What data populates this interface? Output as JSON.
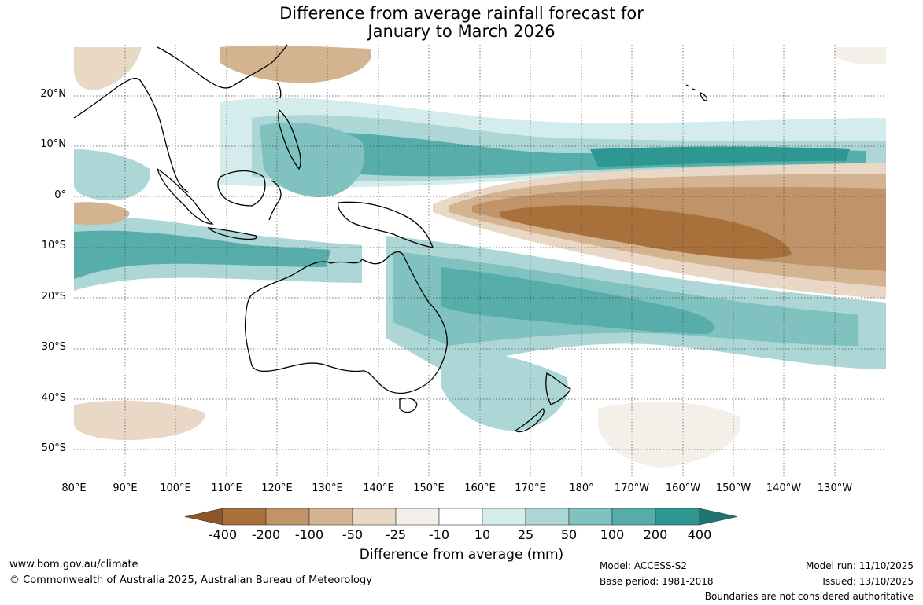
{
  "title_line1": "Difference from average rainfall forecast for",
  "title_line2": "January to March 2026",
  "legend": {
    "labels": [
      "-400",
      "-200",
      "-100",
      "-50",
      "-25",
      "-10",
      "10",
      "25",
      "50",
      "100",
      "200",
      "400"
    ],
    "colors": [
      "#8c5628",
      "#a8703a",
      "#c09468",
      "#d4b390",
      "#e9d8c6",
      "#f4efe8",
      "#ffffff",
      "#d5ecec",
      "#acd7d6",
      "#7fc2bf",
      "#56adaa",
      "#2e9792",
      "#1e7470"
    ],
    "title": "Difference from average (mm)"
  },
  "lat_labels": [
    "20°N",
    "10°N",
    "0°",
    "10°S",
    "20°S",
    "30°S",
    "40°S",
    "50°S"
  ],
  "lon_labels": [
    "80°E",
    "90°E",
    "100°E",
    "110°E",
    "120°E",
    "130°E",
    "140°E",
    "150°E",
    "160°E",
    "170°E",
    "180°",
    "170°W",
    "160°W",
    "150°W",
    "140°W",
    "130°W"
  ],
  "footer": {
    "url": "www.bom.gov.au/climate",
    "copyright": "© Commonwealth of Australia 2025, Australian Bureau of Meteorology",
    "model": "Model: ACCESS-S2",
    "base_period": "Base period: 1981-2018",
    "model_run": "Model run: 11/10/2025",
    "issued": "Issued: 13/10/2025",
    "disclaimer": "Boundaries are not considered authoritative"
  }
}
